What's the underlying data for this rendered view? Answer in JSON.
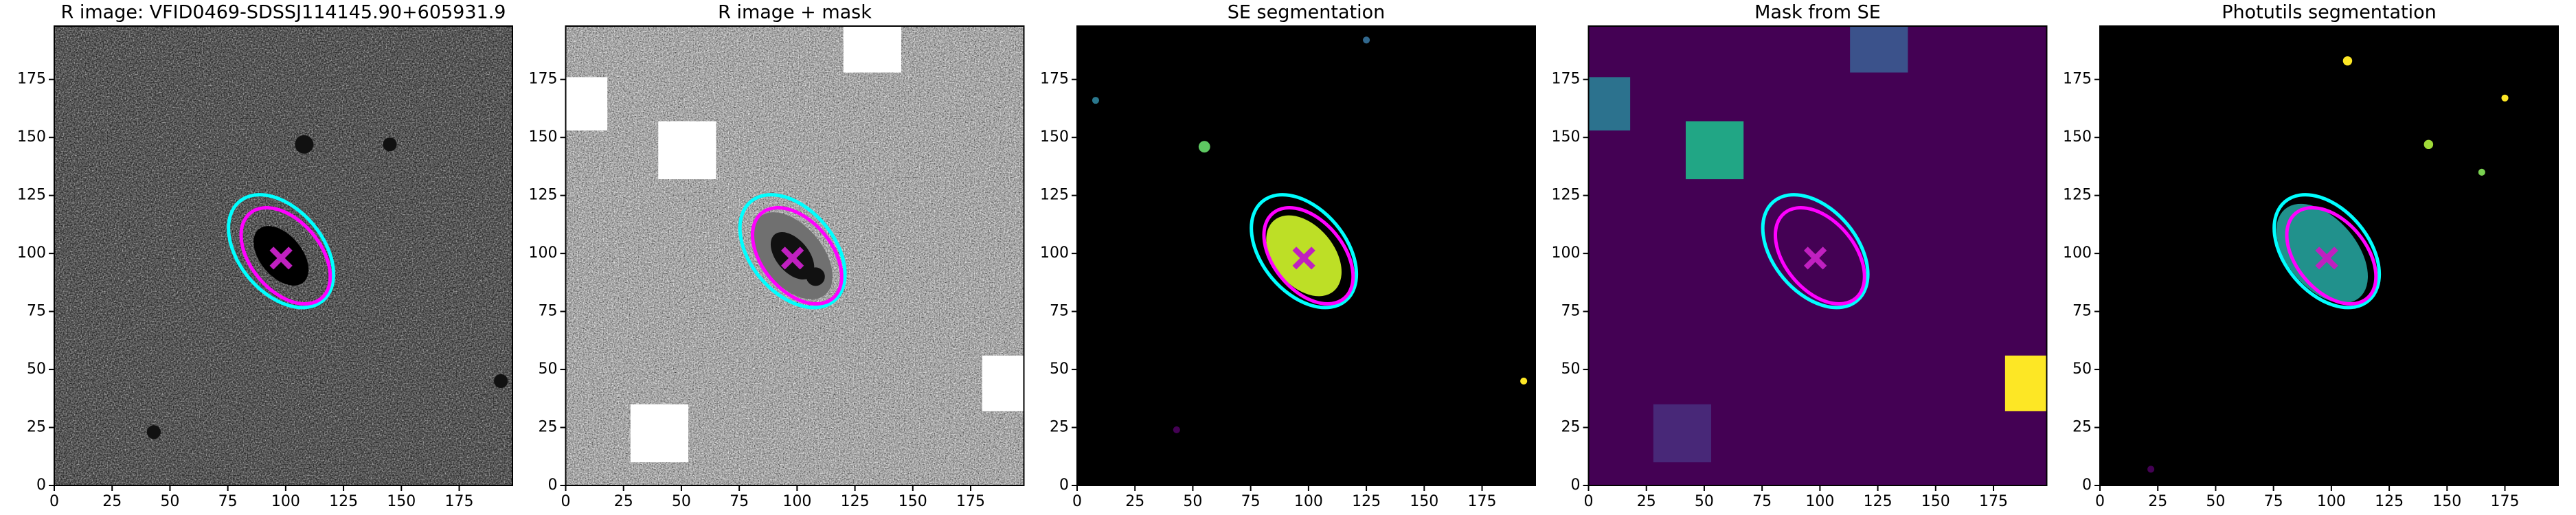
{
  "chart_data": [
    {
      "type": "image",
      "title": "R image: VFID0469-SDSSJ114145.90+605931.9",
      "background": "#505050",
      "noise": true,
      "xlim": [
        0,
        198
      ],
      "ylim": [
        0,
        198
      ],
      "xticks": [
        0,
        25,
        50,
        75,
        100,
        125,
        150,
        175
      ],
      "yticks": [
        0,
        25,
        50,
        75,
        100,
        125,
        150,
        175
      ],
      "rects": [],
      "ellipses": [
        {
          "x": 98,
          "y": 99,
          "width": 30,
          "height": 18,
          "angle": -50,
          "color": "#000000",
          "filled": true
        },
        {
          "x": 98,
          "y": 101,
          "width": 56,
          "height": 36,
          "angle": -50,
          "color": "#00ffff",
          "filled": false
        },
        {
          "x": 100,
          "y": 99,
          "width": 48,
          "height": 30,
          "angle": -50,
          "color": "#ff00ff",
          "filled": false
        }
      ],
      "blobs": [
        {
          "x": 108,
          "y": 147,
          "r": 4,
          "color": "#111111"
        },
        {
          "x": 43,
          "y": 23,
          "r": 3,
          "color": "#111111"
        },
        {
          "x": 145,
          "y": 147,
          "r": 3,
          "color": "#111111"
        },
        {
          "x": 193,
          "y": 45,
          "r": 3,
          "color": "#111111"
        }
      ],
      "marker": {
        "x": 98,
        "y": 98,
        "color": "#c020c0"
      }
    },
    {
      "type": "image",
      "title": "R image + mask",
      "background": "#d4d4d4",
      "noise": true,
      "xlim": [
        0,
        198
      ],
      "ylim": [
        0,
        198
      ],
      "xticks": [
        0,
        25,
        50,
        75,
        100,
        125,
        150,
        175
      ],
      "yticks": [
        0,
        25,
        50,
        75,
        100,
        125,
        150,
        175
      ],
      "rects": [
        {
          "x": 0,
          "y": 153,
          "w": 18,
          "h": 23,
          "color": "#ffffff"
        },
        {
          "x": 40,
          "y": 132,
          "w": 25,
          "h": 25,
          "color": "#ffffff"
        },
        {
          "x": 120,
          "y": 178,
          "w": 25,
          "h": 20,
          "color": "#ffffff"
        },
        {
          "x": 180,
          "y": 32,
          "w": 18,
          "h": 24,
          "color": "#ffffff"
        },
        {
          "x": 28,
          "y": 10,
          "w": 25,
          "h": 25,
          "color": "#ffffff"
        }
      ],
      "ellipses": [
        {
          "x": 98,
          "y": 99,
          "width": 44,
          "height": 26,
          "angle": -50,
          "color": "#707070",
          "filled": true
        },
        {
          "x": 98,
          "y": 99,
          "width": 24,
          "height": 14,
          "angle": -50,
          "color": "#111111",
          "filled": true
        },
        {
          "x": 98,
          "y": 101,
          "width": 56,
          "height": 36,
          "angle": -50,
          "color": "#00ffff",
          "filled": false
        },
        {
          "x": 100,
          "y": 99,
          "width": 48,
          "height": 30,
          "angle": -50,
          "color": "#ff00ff",
          "filled": false
        }
      ],
      "blobs": [
        {
          "x": 108,
          "y": 90,
          "r": 4,
          "color": "#111111"
        }
      ],
      "marker": {
        "x": 98,
        "y": 98,
        "color": "#c020c0"
      }
    },
    {
      "type": "image",
      "title": "SE segmentation",
      "background": "#000000",
      "noise": false,
      "xlim": [
        0,
        198
      ],
      "ylim": [
        0,
        198
      ],
      "xticks": [
        0,
        25,
        50,
        75,
        100,
        125,
        150,
        175
      ],
      "yticks": [
        0,
        25,
        50,
        75,
        100,
        125,
        150,
        175
      ],
      "rects": [],
      "ellipses": [
        {
          "x": 98,
          "y": 99,
          "width": 40,
          "height": 26,
          "angle": -50,
          "color": "#bddf26",
          "filled": true
        },
        {
          "x": 98,
          "y": 101,
          "width": 56,
          "height": 36,
          "angle": -50,
          "color": "#00ffff",
          "filled": false
        },
        {
          "x": 100,
          "y": 99,
          "width": 48,
          "height": 30,
          "angle": -50,
          "color": "#ff00ff",
          "filled": false
        }
      ],
      "blobs": [
        {
          "x": 8,
          "y": 166,
          "r": 1.5,
          "color": "#2a788e"
        },
        {
          "x": 55,
          "y": 146,
          "r": 2.5,
          "color": "#5ec962"
        },
        {
          "x": 125,
          "y": 192,
          "r": 1.5,
          "color": "#31688e"
        },
        {
          "x": 43,
          "y": 24,
          "r": 1.5,
          "color": "#440154"
        },
        {
          "x": 193,
          "y": 45,
          "r": 1.5,
          "color": "#fde725"
        }
      ],
      "marker": {
        "x": 98,
        "y": 98,
        "color": "#c020c0"
      }
    },
    {
      "type": "image",
      "title": "Mask from SE",
      "background": "#440154",
      "noise": false,
      "xlim": [
        0,
        198
      ],
      "ylim": [
        0,
        198
      ],
      "xticks": [
        0,
        25,
        50,
        75,
        100,
        125,
        150,
        175
      ],
      "yticks": [
        0,
        25,
        50,
        75,
        100,
        125,
        150,
        175
      ],
      "rects": [
        {
          "x": 0,
          "y": 153,
          "w": 18,
          "h": 23,
          "color": "#2c728e"
        },
        {
          "x": 42,
          "y": 132,
          "w": 25,
          "h": 25,
          "color": "#21a685"
        },
        {
          "x": 113,
          "y": 178,
          "w": 25,
          "h": 20,
          "color": "#3b528b"
        },
        {
          "x": 180,
          "y": 32,
          "w": 18,
          "h": 24,
          "color": "#fde725"
        },
        {
          "x": 28,
          "y": 10,
          "w": 25,
          "h": 25,
          "color": "#482878"
        }
      ],
      "ellipses": [
        {
          "x": 98,
          "y": 101,
          "width": 56,
          "height": 36,
          "angle": -50,
          "color": "#00ffff",
          "filled": false
        },
        {
          "x": 100,
          "y": 99,
          "width": 48,
          "height": 30,
          "angle": -50,
          "color": "#ff00ff",
          "filled": false
        }
      ],
      "blobs": [],
      "marker": {
        "x": 98,
        "y": 98,
        "color": "#c020c0"
      }
    },
    {
      "type": "image",
      "title": "Photutils segmentation",
      "background": "#000000",
      "noise": false,
      "xlim": [
        0,
        198
      ],
      "ylim": [
        0,
        198
      ],
      "xticks": [
        0,
        25,
        50,
        75,
        100,
        125,
        150,
        175
      ],
      "yticks": [
        0,
        25,
        50,
        75,
        100,
        125,
        150,
        175
      ],
      "rects": [],
      "ellipses": [
        {
          "x": 96,
          "y": 100,
          "width": 50,
          "height": 30,
          "angle": -50,
          "color": "#21918c",
          "filled": true
        },
        {
          "x": 98,
          "y": 101,
          "width": 56,
          "height": 36,
          "angle": -50,
          "color": "#00ffff",
          "filled": false
        },
        {
          "x": 100,
          "y": 99,
          "width": 48,
          "height": 30,
          "angle": -50,
          "color": "#ff00ff",
          "filled": false
        }
      ],
      "blobs": [
        {
          "x": 107,
          "y": 183,
          "r": 2,
          "color": "#fde725"
        },
        {
          "x": 142,
          "y": 147,
          "r": 2,
          "color": "#a0da39"
        },
        {
          "x": 175,
          "y": 167,
          "r": 1.5,
          "color": "#fde725"
        },
        {
          "x": 165,
          "y": 135,
          "r": 1.5,
          "color": "#7ad151"
        },
        {
          "x": 22,
          "y": 7,
          "r": 1.5,
          "color": "#440154"
        }
      ],
      "marker": {
        "x": 98,
        "y": 98,
        "color": "#c020c0"
      }
    }
  ]
}
